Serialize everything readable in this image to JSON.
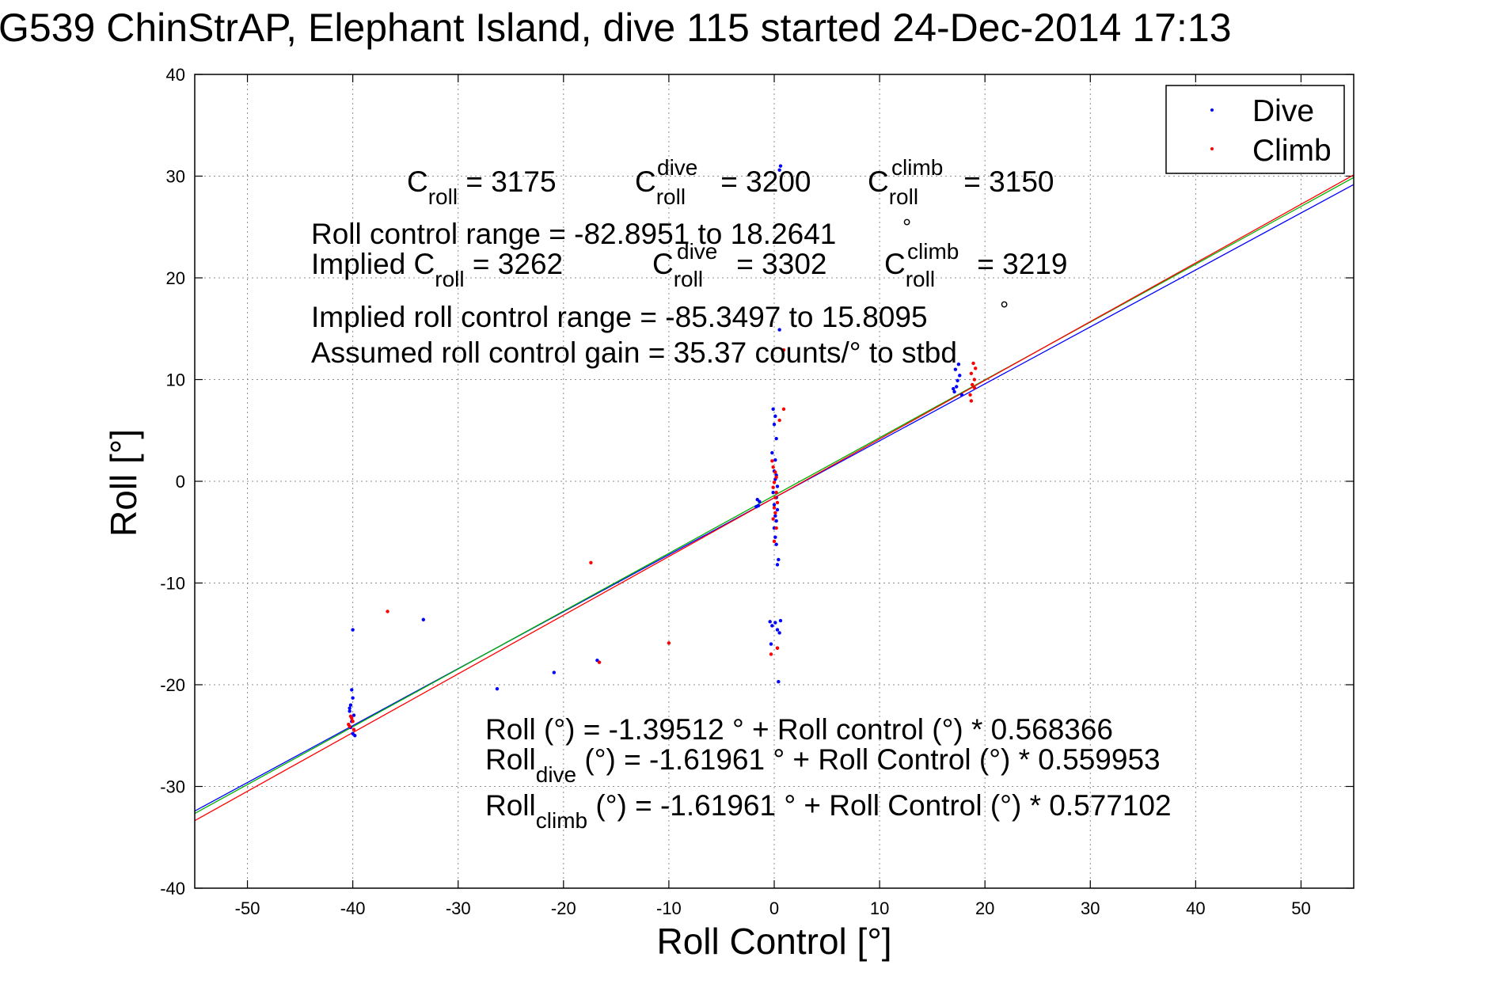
{
  "chart_data": {
    "type": "scatter",
    "title": "G539 ChinStrAP, Elephant Island, dive 115 started 24-Dec-2014 17:13",
    "xlabel": "Roll Control [°]",
    "ylabel": "Roll [°]",
    "xlim": [
      -55,
      55
    ],
    "ylim": [
      -40,
      40
    ],
    "xticks": [
      -50,
      -40,
      -30,
      -20,
      -10,
      0,
      10,
      20,
      30,
      40,
      50
    ],
    "yticks": [
      -40,
      -30,
      -20,
      -10,
      0,
      10,
      20,
      30,
      40
    ],
    "grid": true,
    "legend_position": "top-right",
    "series": [
      {
        "name": "Dive",
        "color": "#0000ff",
        "points": [
          [
            -40.0,
            -14.6
          ],
          [
            -33.3,
            -13.6
          ],
          [
            -26.3,
            -20.4
          ],
          [
            -20.9,
            -18.8
          ],
          [
            -16.8,
            -17.6
          ],
          [
            -40.1,
            -20.5
          ],
          [
            -40.0,
            -21.3
          ],
          [
            -40.2,
            -22.0
          ],
          [
            -40.3,
            -22.6
          ],
          [
            -39.9,
            -23.0
          ],
          [
            -40.1,
            -23.6
          ],
          [
            -40.2,
            -24.2
          ],
          [
            -40.0,
            -24.8
          ],
          [
            -39.8,
            -25.0
          ],
          [
            -40.3,
            -22.3
          ],
          [
            -1.6,
            -1.8
          ],
          [
            -1.5,
            -2.4
          ],
          [
            -1.4,
            -2.0
          ],
          [
            -1.7,
            -2.5
          ],
          [
            -0.1,
            7.1
          ],
          [
            0.1,
            6.4
          ],
          [
            0.0,
            5.6
          ],
          [
            0.2,
            4.2
          ],
          [
            -0.2,
            2.8
          ],
          [
            0.1,
            2.1
          ],
          [
            0.0,
            1.0
          ],
          [
            0.2,
            0.6
          ],
          [
            0.1,
            0.2
          ],
          [
            0.3,
            -0.5
          ],
          [
            -0.1,
            -1.1
          ],
          [
            0.2,
            -1.6
          ],
          [
            0.0,
            -2.3
          ],
          [
            0.3,
            -2.8
          ],
          [
            0.1,
            -3.4
          ],
          [
            0.2,
            -3.9
          ],
          [
            0.0,
            -4.6
          ],
          [
            0.1,
            -5.5
          ],
          [
            0.2,
            -6.2
          ],
          [
            0.4,
            -7.7
          ],
          [
            0.3,
            -8.2
          ],
          [
            0.5,
            14.9
          ],
          [
            0.5,
            30.6
          ],
          [
            0.6,
            31.0
          ],
          [
            -0.4,
            -13.8
          ],
          [
            -0.2,
            -14.2
          ],
          [
            0.1,
            -13.9
          ],
          [
            0.3,
            -14.6
          ],
          [
            0.5,
            -14.9
          ],
          [
            0.6,
            -13.7
          ],
          [
            -0.3,
            -16.0
          ],
          [
            0.3,
            -16.4
          ],
          [
            0.4,
            -19.7
          ],
          [
            17.1,
            8.8
          ],
          [
            17.3,
            9.3
          ],
          [
            17.4,
            9.9
          ],
          [
            17.6,
            10.4
          ],
          [
            17.2,
            11.0
          ],
          [
            17.5,
            11.5
          ],
          [
            17.8,
            8.5
          ],
          [
            17.0,
            9.1
          ]
        ]
      },
      {
        "name": "Climb",
        "color": "#ff0000",
        "points": [
          [
            -36.7,
            -12.8
          ],
          [
            -17.4,
            -8.0
          ],
          [
            -16.6,
            -17.8
          ],
          [
            -10.0,
            -15.9
          ],
          [
            -40.2,
            -23.1
          ],
          [
            -40.0,
            -23.6
          ],
          [
            -40.3,
            -24.1
          ],
          [
            -39.9,
            -24.4
          ],
          [
            -40.1,
            -23.3
          ],
          [
            -40.4,
            -23.9
          ],
          [
            -0.2,
            2.0
          ],
          [
            -0.1,
            1.4
          ],
          [
            0.1,
            0.9
          ],
          [
            0.2,
            0.4
          ],
          [
            0.0,
            -0.1
          ],
          [
            -0.1,
            -0.6
          ],
          [
            0.2,
            -1.1
          ],
          [
            0.1,
            -1.6
          ],
          [
            0.3,
            -2.1
          ],
          [
            0.0,
            -2.6
          ],
          [
            0.1,
            -3.1
          ],
          [
            -0.1,
            -3.7
          ],
          [
            0.2,
            -4.6
          ],
          [
            0.0,
            -5.9
          ],
          [
            -0.3,
            -17.0
          ],
          [
            0.3,
            -16.4
          ],
          [
            0.9,
            12.9
          ],
          [
            0.5,
            6.0
          ],
          [
            0.9,
            7.1
          ],
          [
            18.6,
            8.5
          ],
          [
            18.8,
            9.5
          ],
          [
            19.0,
            10.0
          ],
          [
            18.7,
            10.6
          ],
          [
            19.1,
            11.1
          ],
          [
            18.9,
            11.6
          ],
          [
            18.7,
            7.9
          ],
          [
            19.0,
            9.2
          ]
        ]
      }
    ],
    "fits": [
      {
        "color": "#0000ff",
        "intercept": -1.61961,
        "slope": 0.559953
      },
      {
        "color": "#00b000",
        "intercept": -1.39512,
        "slope": 0.568366
      },
      {
        "color": "#ff0000",
        "intercept": -1.61961,
        "slope": 0.577102
      }
    ],
    "annotations": {
      "c_roll": {
        "base": "C",
        "sub": "roll",
        "rest": " = 3175"
      },
      "c_roll_dive": {
        "base": "C",
        "sup": "dive",
        "sub": "roll",
        "rest": " = 3200"
      },
      "c_roll_climb": {
        "base": "C",
        "sup": "climb",
        "sub": "roll",
        "rest": " = 3150"
      },
      "roll_control_range": "Roll control range = -82.8951 to 18.2641",
      "implied_c_roll": {
        "base": "Implied C",
        "sub": "roll",
        "rest": " = 3262"
      },
      "implied_c_roll_dive": {
        "base": "C",
        "sup": "dive",
        "sub": "roll",
        "rest": " = 3302"
      },
      "implied_c_roll_climb": {
        "base": "C",
        "sup": "climb",
        "sub": "roll",
        "rest": " = 3219"
      },
      "implied_range": "Implied roll control range = -85.3497 to 15.8095",
      "gain": "Assumed roll control gain = 35.37 counts/° to stbd",
      "fit_all": "Roll (°) = -1.39512 ° + Roll control (°) * 0.568366",
      "fit_dive": {
        "base": "Roll",
        "sub": "dive",
        "rest": " (°) = -1.61961 ° + Roll Control (°) * 0.559953"
      },
      "fit_climb": {
        "base": "Roll",
        "sub": "climb",
        "rest": " (°) = -1.61961 ° + Roll Control (°) * 0.577102"
      },
      "degree_symbol": "°"
    }
  }
}
